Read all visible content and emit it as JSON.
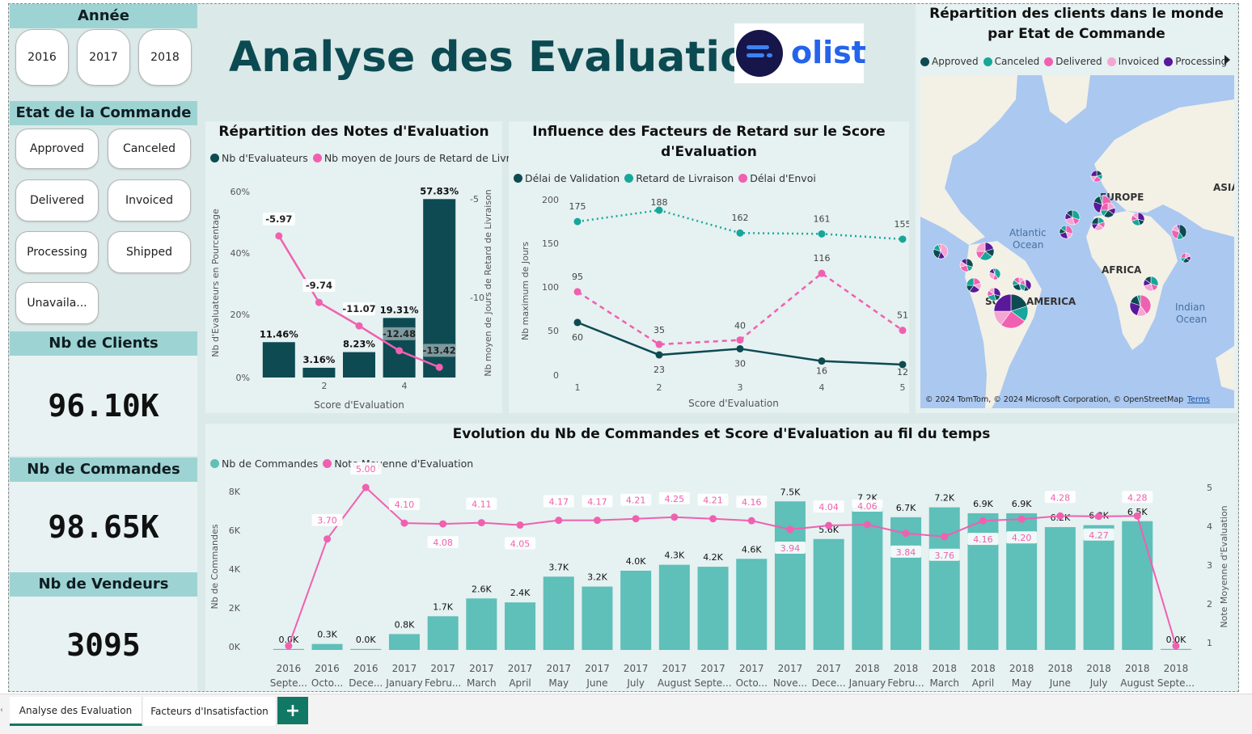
{
  "report": {
    "title": "Analyse des Evaluations",
    "logo_text": "olist"
  },
  "year_slicer": {
    "header": "Année",
    "options": [
      "2016",
      "2017",
      "2018"
    ]
  },
  "status_slicer": {
    "header": "Etat de la Commande",
    "options": [
      "Approved",
      "Canceled",
      "Delivered",
      "Invoiced",
      "Processing",
      "Shipped",
      "Unavaila..."
    ]
  },
  "kpis": [
    {
      "label": "Nb de Clients",
      "value": "96.10K"
    },
    {
      "label": "Nb de Commandes",
      "value": "98.65K"
    },
    {
      "label": "Nb de Vendeurs",
      "value": "3095"
    }
  ],
  "colors": {
    "dark_teal": "#0e4a52",
    "teal": "#16a79a",
    "light_teal": "#5fbfb9",
    "pink": "#f060b0",
    "light_pink": "#f4a6d3",
    "purple": "#5a189a",
    "header_bg": "#9ed3d3",
    "canvas_bg": "#dbe9e9",
    "title_color": "#0c4a52",
    "tab_accent": "#117865"
  },
  "notes_chart": {
    "title": "Répartition des Notes d'Evaluation",
    "legend": [
      "Nb d'Evaluateurs",
      "Nb moyen de Jours de Retard de Livr..."
    ],
    "xlabel": "Score d'Evaluation",
    "ylabel_left": "Nb d'Evaluateurs en Pourcentage",
    "ylabel_right": "Nb moyen de Jours de Retard de Livraison",
    "y_ticks_left": [
      "0%",
      "20%",
      "40%",
      "60%"
    ],
    "y_ticks_right": [
      "-5",
      "-10"
    ],
    "x_ticks": [
      "2",
      "4"
    ]
  },
  "delay_chart": {
    "title": "Influence des Facteurs de Retard sur le Score d'Evaluation",
    "legend": [
      "Délai de Validation",
      "Retard de Livraison",
      "Délai d'Envoi"
    ],
    "xlabel": "Score d'Evaluation",
    "ylabel": "Nb maximum de Jours",
    "y_ticks": [
      "0",
      "50",
      "100",
      "150",
      "200"
    ],
    "x_ticks": [
      "1",
      "2",
      "3",
      "4",
      "5"
    ]
  },
  "map": {
    "title": "Répartition des clients dans le monde par Etat de Commande",
    "legend": [
      "Approved",
      "Canceled",
      "Delivered",
      "Invoiced",
      "Processing"
    ],
    "labels": {
      "europe": "EUROPE",
      "asia": "ASIA",
      "africa": "AFRICA",
      "south_america": "SOUTH AMERICA",
      "atlantic_1": "Atlantic",
      "atlantic_2": "Ocean",
      "indian_1": "Indian",
      "indian_2": "Ocean"
    },
    "attribution": "© 2024 TomTom, © 2024 Microsoft Corporation, © OpenStreetMap",
    "terms": "Terms"
  },
  "timeline_chart": {
    "title": "Evolution du Nb de Commandes et Score d'Evaluation au fil du temps",
    "legend": [
      "Nb de Commandes",
      "Note Moyenne d'Evaluation"
    ],
    "ylabel_left": "Nb de Commandes",
    "ylabel_right": "Note Moyenne d'Evaluation",
    "y_ticks_left": [
      "0K",
      "2K",
      "4K",
      "6K",
      "8K"
    ],
    "y_ticks_right": [
      "1",
      "2",
      "3",
      "4",
      "5"
    ]
  },
  "tabs": [
    "Analyse des Evaluation",
    "Facteurs d'Insatisfaction"
  ],
  "chart_data": [
    {
      "type": "bar",
      "name": "notes",
      "categories": [
        "1",
        "2",
        "3",
        "4",
        "5"
      ],
      "series": [
        {
          "name": "Nb d'Evaluateurs",
          "values": [
            11.46,
            3.16,
            8.23,
            19.31,
            57.83
          ],
          "labels": [
            "11.46%",
            "3.16%",
            "8.23%",
            "19.31%",
            "57.83%"
          ]
        },
        {
          "name": "Nb moyen de Jours de Retard de Livraison",
          "values": [
            -5.97,
            -9.74,
            -11.07,
            -12.48,
            -13.42
          ],
          "labels": [
            "-5.97",
            "-9.74",
            "-11.07",
            "-12.48",
            "-13.42"
          ]
        }
      ],
      "ylim_left": [
        0,
        60
      ],
      "ylim_right": [
        -14,
        -3.5
      ]
    },
    {
      "type": "line",
      "name": "delay",
      "categories": [
        "1",
        "2",
        "3",
        "4",
        "5"
      ],
      "series": [
        {
          "name": "Délai de Validation",
          "values": [
            60,
            23,
            30,
            16,
            12
          ]
        },
        {
          "name": "Retard de Livraison",
          "values": [
            175,
            188,
            162,
            161,
            155
          ]
        },
        {
          "name": "Délai d'Envoi",
          "values": [
            95,
            35,
            40,
            116,
            51
          ]
        }
      ],
      "ylim": [
        0,
        200
      ]
    },
    {
      "type": "bar",
      "name": "timeline",
      "categories": [
        {
          "year": "2016",
          "month": "Septe..."
        },
        {
          "year": "2016",
          "month": "Octo..."
        },
        {
          "year": "2016",
          "month": "Dece..."
        },
        {
          "year": "2017",
          "month": "January"
        },
        {
          "year": "2017",
          "month": "Febru..."
        },
        {
          "year": "2017",
          "month": "March"
        },
        {
          "year": "2017",
          "month": "April"
        },
        {
          "year": "2017",
          "month": "May"
        },
        {
          "year": "2017",
          "month": "June"
        },
        {
          "year": "2017",
          "month": "July"
        },
        {
          "year": "2017",
          "month": "August"
        },
        {
          "year": "2017",
          "month": "Septe..."
        },
        {
          "year": "2017",
          "month": "Octo..."
        },
        {
          "year": "2017",
          "month": "Nove..."
        },
        {
          "year": "2017",
          "month": "Dece..."
        },
        {
          "year": "2018",
          "month": "January"
        },
        {
          "year": "2018",
          "month": "Febru..."
        },
        {
          "year": "2018",
          "month": "March"
        },
        {
          "year": "2018",
          "month": "April"
        },
        {
          "year": "2018",
          "month": "May"
        },
        {
          "year": "2018",
          "month": "June"
        },
        {
          "year": "2018",
          "month": "July"
        },
        {
          "year": "2018",
          "month": "August"
        },
        {
          "year": "2018",
          "month": "Septe..."
        }
      ],
      "series": [
        {
          "name": "Nb de Commandes",
          "values": [
            0.0,
            0.3,
            0.0,
            0.8,
            1.7,
            2.6,
            2.4,
            3.7,
            3.2,
            4.0,
            4.3,
            4.2,
            4.6,
            7.5,
            5.6,
            7.2,
            6.7,
            7.2,
            6.9,
            6.9,
            6.2,
            6.3,
            6.5,
            0.0
          ],
          "labels": [
            "0.0K",
            "0.3K",
            "0.0K",
            "0.8K",
            "1.7K",
            "2.6K",
            "2.4K",
            "3.7K",
            "3.2K",
            "4.0K",
            "4.3K",
            "4.2K",
            "4.6K",
            "7.5K",
            "5.6K",
            "7.2K",
            "6.7K",
            "7.2K",
            "6.9K",
            "6.9K",
            "6.2K",
            "6.3K",
            "6.5K",
            "0.0K"
          ]
        },
        {
          "name": "Note Moyenne d'Evaluation",
          "values": [
            1.0,
            3.7,
            5.0,
            4.1,
            4.08,
            4.11,
            4.05,
            4.17,
            4.17,
            4.21,
            4.25,
            4.21,
            4.16,
            3.94,
            4.04,
            4.06,
            3.84,
            3.76,
            4.16,
            4.2,
            4.28,
            4.27,
            4.28,
            1.0
          ],
          "labels": [
            "",
            "3.70",
            "5.00",
            "4.10",
            "4.08",
            "4.11",
            "4.05",
            "4.17",
            "4.17",
            "4.21",
            "4.25",
            "4.21",
            "4.16",
            "3.94",
            "4.04",
            "4.06",
            "3.84",
            "3.76",
            "4.16",
            "4.20",
            "4.28",
            "4.27",
            "4.28",
            ""
          ]
        }
      ],
      "ylim_left": [
        0,
        8.5
      ],
      "ylim_right": [
        1,
        5
      ]
    }
  ]
}
